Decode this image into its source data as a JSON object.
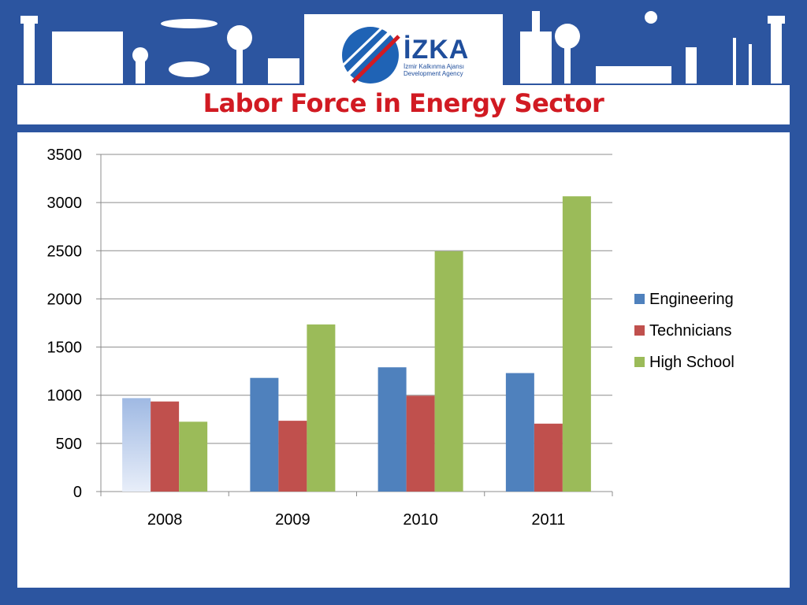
{
  "header": {
    "logo_name": "İZKA",
    "logo_line1": "İzmir Kalkınma Ajansı",
    "logo_line2": "Development Agency",
    "title": "Labor Force in Energy Sector"
  },
  "colors": {
    "frame": "#2c55a0",
    "title": "#d11a22",
    "engineering": "#4f81bd",
    "technicians": "#c0504d",
    "high_school": "#9bbb59"
  },
  "chart_data": {
    "type": "bar",
    "title": "",
    "xlabel": "",
    "ylabel": "",
    "categories": [
      "2008",
      "2009",
      "2010",
      "2011"
    ],
    "series": [
      {
        "name": "Engineering",
        "values": [
          970,
          1180,
          1290,
          1230
        ]
      },
      {
        "name": "Technicians",
        "values": [
          935,
          735,
          995,
          705
        ]
      },
      {
        "name": "High  School",
        "values": [
          725,
          1735,
          2495,
          3065
        ]
      }
    ],
    "ylim": [
      0,
      3500
    ],
    "yticks": [
      "0",
      "500",
      "1000",
      "1500",
      "2000",
      "2500",
      "3000",
      "3500"
    ],
    "grid": true,
    "legend_position": "right"
  }
}
